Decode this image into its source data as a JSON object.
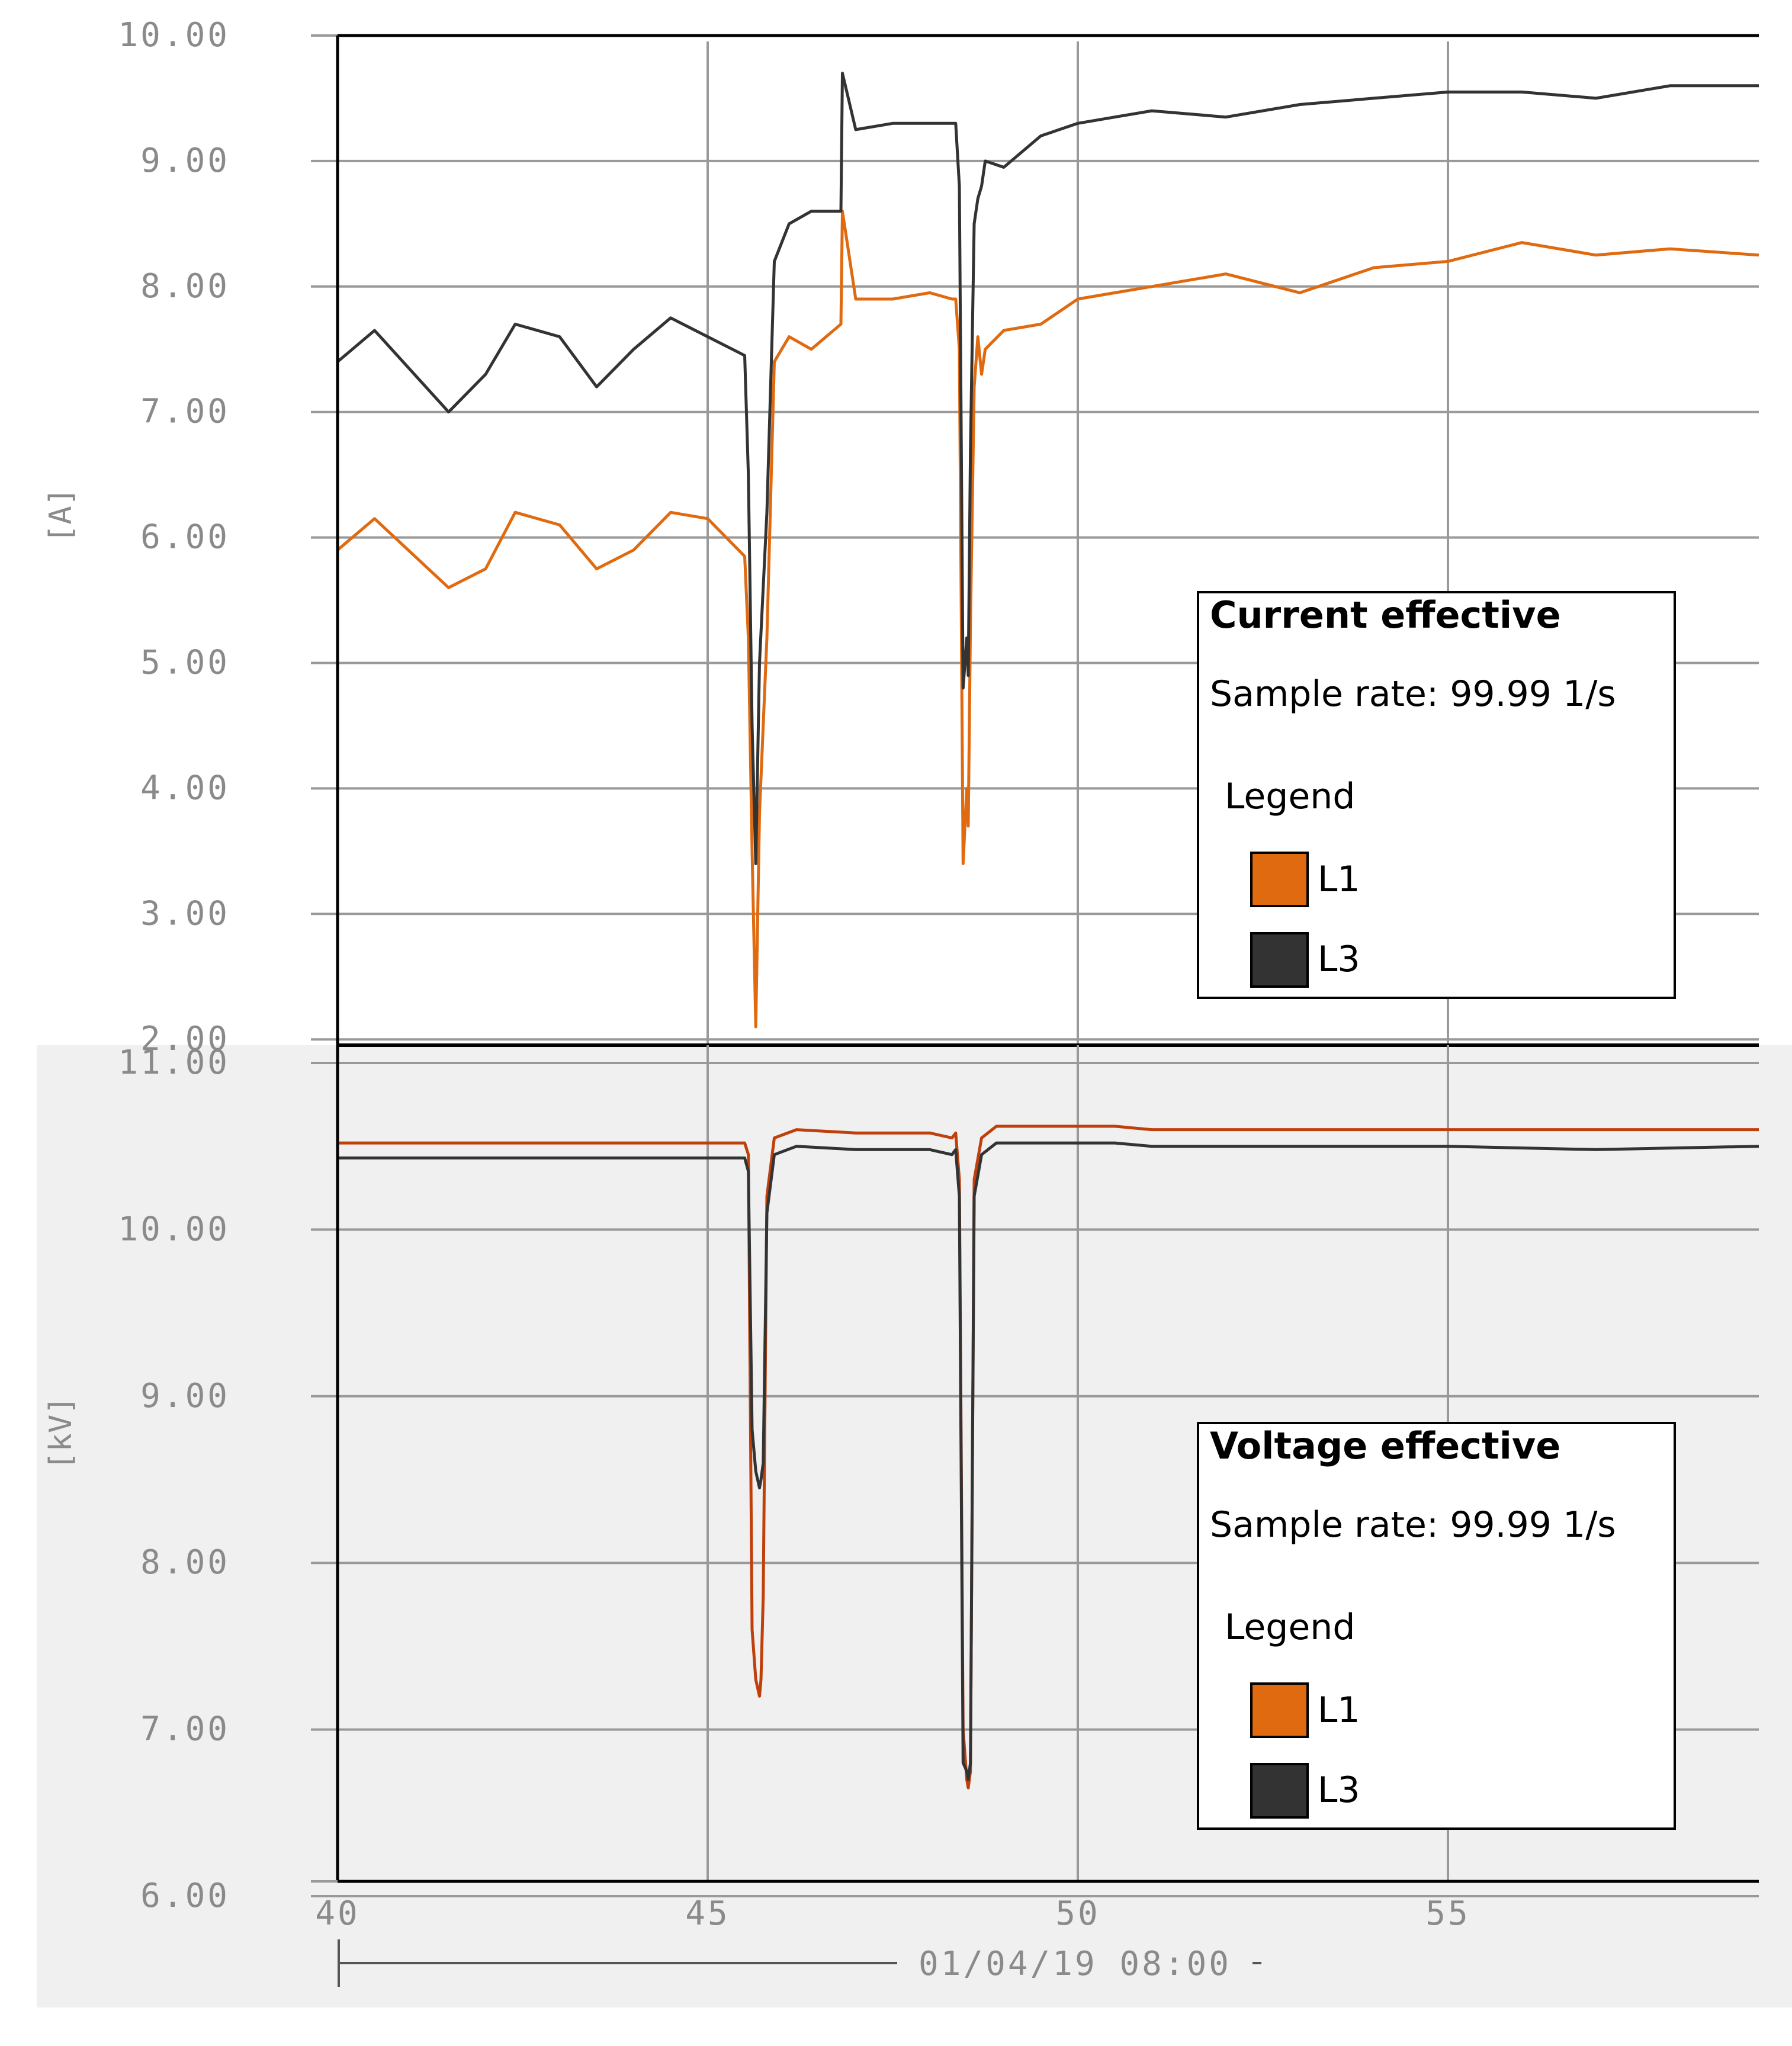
{
  "chart_data": [
    {
      "type": "line",
      "title": "Current effective",
      "sample_rate": "Sample rate: 99.99 1/s",
      "legend_title": "Legend",
      "ylabel": "[A]",
      "ylim": [
        2.0,
        10.0
      ],
      "yticks": [
        "10.00",
        "9.00",
        "8.00",
        "7.00",
        "6.00",
        "5.00",
        "4.00",
        "3.00",
        "2.00"
      ],
      "xlim": [
        40,
        59.2
      ],
      "grid": true,
      "legend_position": "right",
      "series": [
        {
          "name": "L1",
          "color": "#e06a10",
          "x": [
            40,
            40.5,
            41.5,
            42,
            42.4,
            43,
            43.5,
            44,
            44.5,
            45,
            45.5,
            45.55,
            45.6,
            45.65,
            45.7,
            45.8,
            45.9,
            46.1,
            46.4,
            46.8,
            46.82,
            47,
            47.5,
            48,
            48.3,
            48.35,
            48.4,
            48.45,
            48.5,
            48.52,
            48.55,
            48.6,
            48.65,
            48.7,
            48.75,
            49,
            49.5,
            50,
            50.5,
            51,
            52,
            53,
            54,
            55,
            56,
            57,
            58,
            59.2
          ],
          "y": [
            5.9,
            6.15,
            5.6,
            5.75,
            6.2,
            6.1,
            5.75,
            5.9,
            6.2,
            6.15,
            5.85,
            5.2,
            3.5,
            2.1,
            3.8,
            5.2,
            7.4,
            7.6,
            7.5,
            7.7,
            8.6,
            7.9,
            7.9,
            7.95,
            7.9,
            7.9,
            7.5,
            3.4,
            4.0,
            3.7,
            5.3,
            7.2,
            7.6,
            7.3,
            7.5,
            7.65,
            7.7,
            7.9,
            7.95,
            8.0,
            8.1,
            7.95,
            8.15,
            8.2,
            8.35,
            8.25,
            8.3,
            8.25
          ]
        },
        {
          "name": "L3",
          "color": "#333333",
          "x": [
            40,
            40.5,
            41.5,
            42,
            42.4,
            43,
            43.5,
            44,
            44.5,
            45,
            45.5,
            45.55,
            45.6,
            45.65,
            45.7,
            45.8,
            45.9,
            46.1,
            46.4,
            46.8,
            46.82,
            47,
            47.5,
            48,
            48.3,
            48.35,
            48.4,
            48.45,
            48.5,
            48.52,
            48.55,
            48.6,
            48.65,
            48.7,
            48.75,
            49,
            49.5,
            50,
            50.5,
            51,
            52,
            53,
            54,
            55,
            56,
            57,
            58,
            59.2
          ],
          "y": [
            7.4,
            7.65,
            7.0,
            7.3,
            7.7,
            7.6,
            7.2,
            7.5,
            7.75,
            7.6,
            7.45,
            6.5,
            4.5,
            3.4,
            5.0,
            6.2,
            8.2,
            8.5,
            8.6,
            8.6,
            9.7,
            9.25,
            9.3,
            9.3,
            9.3,
            9.3,
            8.8,
            4.8,
            5.2,
            4.9,
            6.7,
            8.5,
            8.7,
            8.8,
            9.0,
            8.95,
            9.2,
            9.3,
            9.35,
            9.4,
            9.35,
            9.45,
            9.5,
            9.55,
            9.55,
            9.5,
            9.6,
            9.6
          ]
        }
      ]
    },
    {
      "type": "line",
      "title": "Voltage effective",
      "sample_rate": "Sample rate: 99.99 1/s",
      "legend_title": "Legend",
      "ylabel": "[kV]",
      "ylim": [
        6.0,
        11.0
      ],
      "yticks": [
        "11.00",
        "10.00",
        "9.00",
        "8.00",
        "7.00",
        "6.00"
      ],
      "xlim": [
        40,
        59.2
      ],
      "xticks": [
        "40",
        "45",
        "50",
        "55"
      ],
      "xlabel": "01/04/19 08:00",
      "grid": true,
      "legend_position": "right",
      "series": [
        {
          "name": "L1",
          "color": "#c0400c",
          "x": [
            40,
            45,
            45.5,
            45.55,
            45.6,
            45.65,
            45.7,
            45.72,
            45.75,
            45.8,
            45.9,
            46.2,
            47,
            48,
            48.3,
            48.35,
            48.4,
            48.45,
            48.5,
            48.52,
            48.55,
            48.6,
            48.7,
            48.9,
            50,
            50.5,
            51,
            53,
            55,
            57,
            59.2
          ],
          "y": [
            10.52,
            10.52,
            10.52,
            10.45,
            7.6,
            7.3,
            7.2,
            7.3,
            7.8,
            10.2,
            10.55,
            10.6,
            10.58,
            10.58,
            10.55,
            10.58,
            10.3,
            7.0,
            6.7,
            6.65,
            6.75,
            10.3,
            10.55,
            10.62,
            10.62,
            10.62,
            10.6,
            10.6,
            10.6,
            10.6,
            10.6
          ]
        },
        {
          "name": "L3",
          "color": "#333333",
          "x": [
            40,
            45,
            45.5,
            45.55,
            45.6,
            45.65,
            45.7,
            45.72,
            45.75,
            45.8,
            45.9,
            46.2,
            47,
            48,
            48.3,
            48.35,
            48.4,
            48.45,
            48.5,
            48.52,
            48.55,
            48.6,
            48.7,
            48.9,
            50,
            50.5,
            51,
            53,
            55,
            57,
            59.2
          ],
          "y": [
            10.43,
            10.43,
            10.43,
            10.35,
            8.8,
            8.55,
            8.45,
            8.5,
            8.6,
            10.1,
            10.45,
            10.5,
            10.48,
            10.48,
            10.45,
            10.48,
            10.2,
            6.8,
            6.75,
            6.7,
            6.8,
            10.2,
            10.45,
            10.52,
            10.52,
            10.52,
            10.5,
            10.5,
            10.5,
            10.48,
            10.5
          ]
        }
      ]
    }
  ]
}
